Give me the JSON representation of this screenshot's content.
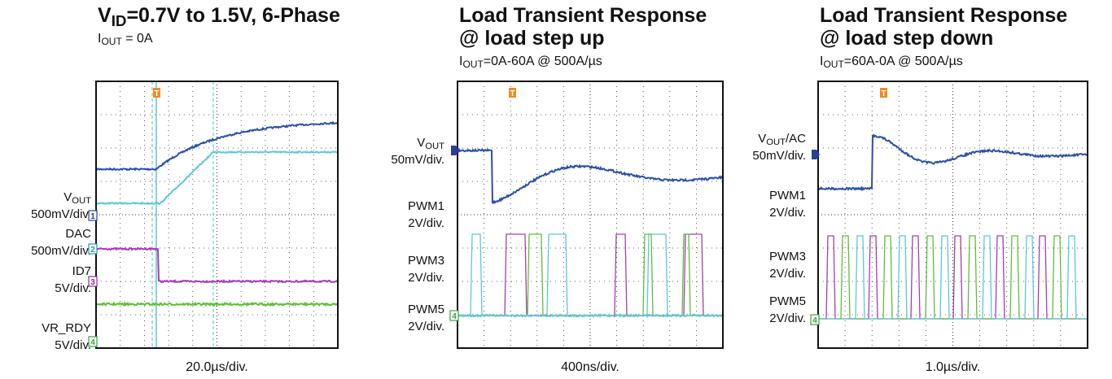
{
  "panels": [
    {
      "title": [
        [
          {
            "text": "V"
          },
          {
            "text": "ID",
            "sub": true
          },
          {
            "text": "=0.7V to 1.5V, 6-Phase"
          }
        ]
      ],
      "subtitle": [
        {
          "text": "I"
        },
        {
          "text": "OUT",
          "sub": true
        },
        {
          "text": " = 0A"
        }
      ],
      "trigger": "T",
      "channels": [
        {
          "name": [
            {
              "text": "V"
            },
            {
              "text": "OUT",
              "sub": true
            }
          ],
          "scale": "500mV/div.",
          "marker": "1"
        },
        {
          "name": [
            {
              "text": "DAC"
            }
          ],
          "scale": "500mV/div.",
          "marker": "2"
        },
        {
          "name": [
            {
              "text": "ID7"
            }
          ],
          "scale": "5V/div.",
          "marker": "3"
        },
        {
          "name": [
            {
              "text": "VR_RDY"
            }
          ],
          "scale": "5V/div.",
          "marker": "4"
        }
      ],
      "timebase": "20.0µs/div."
    },
    {
      "title": [
        [
          {
            "text": "Load Transient Response"
          }
        ],
        [
          {
            "text": "@ load step up"
          }
        ]
      ],
      "subtitle": [
        {
          "text": "I"
        },
        {
          "text": "OUT",
          "sub": true
        },
        {
          "text": "=0A-60A @ 500A/µs"
        }
      ],
      "trigger": "T",
      "channels": [
        {
          "name": [
            {
              "text": "V"
            },
            {
              "text": "OUT",
              "sub": true
            }
          ],
          "scale": "50mV/div."
        },
        {
          "name": [
            {
              "text": "PWM1"
            }
          ],
          "scale": "2V/div."
        },
        {
          "name": [
            {
              "text": "PWM3"
            }
          ],
          "scale": "2V/div."
        },
        {
          "name": [
            {
              "text": "PWM5"
            }
          ],
          "scale": "2V/div.",
          "marker": "4"
        }
      ],
      "timebase": "400ns/div."
    },
    {
      "title": [
        [
          {
            "text": "Load Transient Response"
          }
        ],
        [
          {
            "text": "@ load step down"
          }
        ]
      ],
      "subtitle": [
        {
          "text": "I"
        },
        {
          "text": "OUT",
          "sub": true
        },
        {
          "text": "=60A-0A @ 500A/µs"
        }
      ],
      "trigger": "T",
      "channels": [
        {
          "name": [
            {
              "text": "V"
            },
            {
              "text": "OUT",
              "sub": true
            },
            {
              "text": "/AC"
            }
          ],
          "scale": "50mV/div."
        },
        {
          "name": [
            {
              "text": "PWM1"
            }
          ],
          "scale": "2V/div."
        },
        {
          "name": [
            {
              "text": "PWM3"
            }
          ],
          "scale": "2V/div."
        },
        {
          "name": [
            {
              "text": "PWM5"
            }
          ],
          "scale": "2V/div.",
          "marker": "4"
        }
      ],
      "timebase": "1.0µs/div."
    }
  ]
}
